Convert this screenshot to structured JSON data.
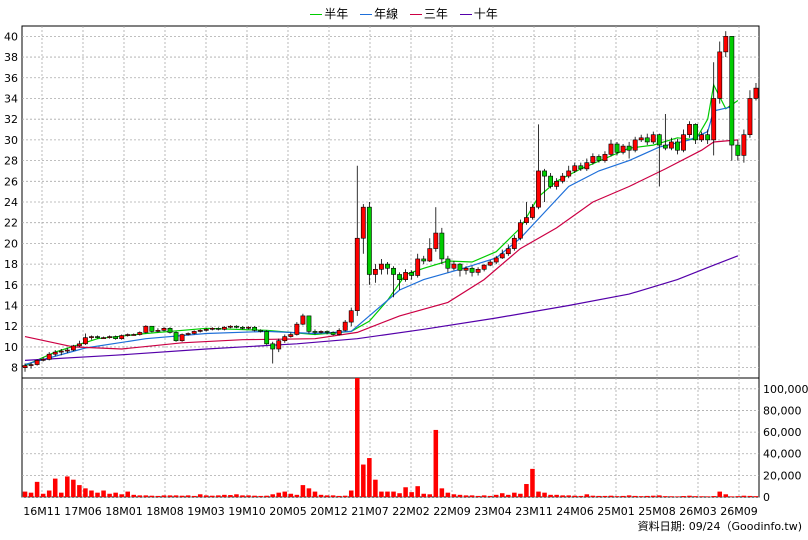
{
  "legend": {
    "items": [
      {
        "label": "半年",
        "color": "#00cc00"
      },
      {
        "label": "年線",
        "color": "#1e6fd9"
      },
      {
        "label": "三年",
        "color": "#cc0044"
      },
      {
        "label": "十年",
        "color": "#5500aa"
      }
    ]
  },
  "credit": "資料日期: 09/24（Goodinfo.tw)",
  "chart_data": {
    "type": "candlestick+volume",
    "x_ticks": [
      "16M11",
      "17M06",
      "18M01",
      "18M08",
      "19M03",
      "19M10",
      "20M05",
      "20M12",
      "21M07",
      "22M02",
      "22M09",
      "23M04",
      "23M11",
      "24M06",
      "25M01",
      "25M08",
      "26M03",
      "26M09"
    ],
    "price_axis": {
      "ylim": [
        7,
        41
      ],
      "ticks": [
        8,
        10,
        12,
        14,
        16,
        18,
        20,
        22,
        24,
        26,
        28,
        30,
        32,
        34,
        36,
        38,
        40
      ],
      "grid": true
    },
    "volume_axis": {
      "ylim": [
        0,
        110000
      ],
      "ticks": [
        "0",
        "20,000",
        "40,000",
        "60,000",
        "80,000",
        "100,000"
      ],
      "tick_values": [
        0,
        20000,
        40000,
        60000,
        80000,
        100000
      ]
    },
    "colors": {
      "up": "#ff0000",
      "down": "#00cc00",
      "volume": "#ff0000",
      "grid": "#aaaaaa"
    },
    "series": [
      {
        "name": "半年",
        "color": "#00cc00",
        "points": [
          [
            0,
            8.2
          ],
          [
            5,
            9.5
          ],
          [
            12,
            10.8
          ],
          [
            20,
            11.3
          ],
          [
            30,
            11.8
          ],
          [
            40,
            11.6
          ],
          [
            48,
            11.2
          ],
          [
            54,
            11.5
          ],
          [
            57,
            12.5
          ],
          [
            60,
            14.5
          ],
          [
            63,
            17.0
          ],
          [
            66,
            17.6
          ],
          [
            70,
            18.3
          ],
          [
            74,
            18.2
          ],
          [
            78,
            19.2
          ],
          [
            82,
            21.5
          ],
          [
            85,
            24.5
          ],
          [
            88,
            26.0
          ],
          [
            92,
            27.2
          ],
          [
            96,
            28.2
          ],
          [
            100,
            29.2
          ],
          [
            104,
            29.5
          ],
          [
            108,
            30.2
          ],
          [
            111,
            30.0
          ],
          [
            113,
            32.0
          ],
          [
            114,
            35.3
          ],
          [
            116,
            33.0
          ],
          [
            118,
            33.8
          ]
        ]
      },
      {
        "name": "年線",
        "color": "#1e6fd9",
        "points": [
          [
            0,
            8.3
          ],
          [
            10,
            9.9
          ],
          [
            20,
            10.8
          ],
          [
            30,
            11.3
          ],
          [
            40,
            11.5
          ],
          [
            48,
            11.3
          ],
          [
            54,
            11.5
          ],
          [
            58,
            13.5
          ],
          [
            62,
            15.5
          ],
          [
            66,
            16.5
          ],
          [
            72,
            17.5
          ],
          [
            78,
            18.6
          ],
          [
            82,
            20.5
          ],
          [
            86,
            23.0
          ],
          [
            90,
            25.5
          ],
          [
            95,
            27.0
          ],
          [
            100,
            28.0
          ],
          [
            105,
            29.3
          ],
          [
            110,
            30.0
          ],
          [
            113,
            30.8
          ],
          [
            114,
            32.8
          ],
          [
            117,
            33.2
          ]
        ]
      },
      {
        "name": "三年",
        "color": "#cc0044",
        "points": [
          [
            0,
            11.0
          ],
          [
            8,
            10.0
          ],
          [
            16,
            9.8
          ],
          [
            26,
            10.4
          ],
          [
            36,
            10.7
          ],
          [
            48,
            10.8
          ],
          [
            55,
            11.4
          ],
          [
            62,
            13.0
          ],
          [
            70,
            14.3
          ],
          [
            76,
            16.5
          ],
          [
            82,
            19.5
          ],
          [
            88,
            21.5
          ],
          [
            94,
            24.0
          ],
          [
            100,
            25.5
          ],
          [
            106,
            27.2
          ],
          [
            112,
            29.0
          ],
          [
            114,
            29.8
          ],
          [
            118,
            30.0
          ]
        ]
      },
      {
        "name": "十年",
        "color": "#5500aa",
        "points": [
          [
            0,
            8.7
          ],
          [
            15,
            9.2
          ],
          [
            30,
            9.8
          ],
          [
            45,
            10.3
          ],
          [
            55,
            10.8
          ],
          [
            66,
            11.7
          ],
          [
            78,
            12.8
          ],
          [
            90,
            14.0
          ],
          [
            100,
            15.1
          ],
          [
            108,
            16.5
          ],
          [
            114,
            17.9
          ],
          [
            118,
            18.8
          ]
        ]
      }
    ],
    "candles": [
      [
        8.0,
        8.2,
        7.6,
        8.4
      ],
      [
        8.2,
        8.3,
        7.9,
        8.5
      ],
      [
        8.3,
        8.7,
        8.2,
        8.8
      ],
      [
        8.7,
        8.8,
        8.6,
        9.0
      ],
      [
        8.8,
        9.3,
        8.7,
        9.5
      ],
      [
        9.3,
        9.5,
        9.1,
        9.7
      ],
      [
        9.5,
        9.6,
        9.2,
        9.8
      ],
      [
        9.6,
        9.7,
        9.4,
        9.9
      ],
      [
        9.7,
        10.1,
        9.6,
        10.2
      ],
      [
        10.1,
        10.3,
        10.0,
        10.6
      ],
      [
        10.3,
        10.9,
        10.2,
        11.3
      ],
      [
        10.9,
        11.0,
        10.7,
        11.1
      ],
      [
        11.0,
        10.9,
        10.8,
        11.1
      ],
      [
        10.9,
        10.9,
        10.8,
        11.0
      ],
      [
        10.9,
        11.0,
        10.8,
        11.1
      ],
      [
        11.0,
        10.8,
        10.7,
        11.1
      ],
      [
        10.8,
        11.1,
        10.7,
        11.2
      ],
      [
        11.1,
        11.2,
        11.0,
        11.3
      ],
      [
        11.2,
        11.2,
        11.1,
        11.3
      ],
      [
        11.2,
        11.4,
        11.1,
        11.5
      ],
      [
        11.4,
        12.0,
        11.3,
        12.1
      ],
      [
        12.0,
        11.5,
        11.4,
        12.0
      ],
      [
        11.5,
        11.6,
        11.4,
        11.8
      ],
      [
        11.6,
        11.8,
        11.5,
        11.9
      ],
      [
        11.8,
        11.4,
        11.3,
        11.9
      ],
      [
        11.4,
        10.6,
        10.5,
        11.5
      ],
      [
        10.6,
        11.2,
        10.5,
        11.3
      ],
      [
        11.2,
        11.3,
        11.1,
        11.4
      ],
      [
        11.3,
        11.5,
        11.2,
        11.6
      ],
      [
        11.5,
        11.6,
        11.4,
        11.7
      ],
      [
        11.6,
        11.7,
        11.5,
        11.8
      ],
      [
        11.7,
        11.8,
        11.6,
        11.9
      ],
      [
        11.8,
        11.7,
        11.6,
        11.9
      ],
      [
        11.7,
        11.9,
        11.6,
        12.0
      ],
      [
        11.9,
        12.0,
        11.8,
        12.1
      ],
      [
        12.0,
        11.9,
        11.8,
        12.1
      ],
      [
        11.9,
        11.8,
        11.7,
        12.0
      ],
      [
        11.8,
        11.9,
        11.7,
        12.0
      ],
      [
        11.9,
        11.6,
        11.5,
        12.0
      ],
      [
        11.6,
        11.5,
        11.4,
        11.7
      ],
      [
        11.5,
        10.3,
        10.2,
        11.6
      ],
      [
        10.3,
        9.8,
        8.4,
        10.5
      ],
      [
        9.8,
        10.6,
        9.5,
        10.8
      ],
      [
        10.6,
        11.0,
        10.4,
        11.2
      ],
      [
        11.0,
        11.2,
        10.9,
        11.4
      ],
      [
        11.2,
        12.2,
        11.1,
        12.4
      ],
      [
        12.2,
        13.0,
        12.1,
        13.2
      ],
      [
        13.0,
        11.5,
        11.3,
        13.0
      ],
      [
        11.5,
        11.4,
        11.2,
        11.7
      ],
      [
        11.4,
        11.5,
        11.3,
        11.6
      ],
      [
        11.5,
        11.4,
        11.2,
        11.6
      ],
      [
        11.4,
        11.2,
        11.1,
        11.5
      ],
      [
        11.2,
        11.6,
        11.1,
        11.8
      ],
      [
        11.6,
        12.4,
        11.5,
        12.6
      ],
      [
        12.4,
        13.5,
        12.0,
        13.8
      ],
      [
        13.5,
        20.5,
        13.0,
        27.5
      ],
      [
        20.5,
        23.5,
        19.0,
        23.8
      ],
      [
        23.5,
        17.0,
        16.0,
        24.0
      ],
      [
        17.0,
        17.5,
        16.2,
        18.0
      ],
      [
        17.5,
        18.0,
        17.0,
        18.5
      ],
      [
        18.0,
        17.6,
        17.0,
        18.2
      ],
      [
        17.6,
        17.0,
        14.8,
        17.8
      ],
      [
        17.0,
        16.5,
        15.5,
        17.2
      ],
      [
        16.5,
        17.2,
        16.3,
        17.5
      ],
      [
        17.2,
        16.9,
        16.5,
        17.4
      ],
      [
        16.9,
        18.5,
        16.7,
        19.0
      ],
      [
        18.5,
        18.3,
        18.0,
        18.8
      ],
      [
        18.3,
        19.5,
        18.2,
        20.5
      ],
      [
        19.5,
        21.0,
        19.2,
        23.5
      ],
      [
        21.0,
        18.5,
        18.0,
        21.5
      ],
      [
        18.5,
        17.6,
        17.2,
        18.8
      ],
      [
        17.6,
        18.0,
        17.4,
        18.3
      ],
      [
        18.0,
        17.4,
        16.8,
        18.1
      ],
      [
        17.4,
        17.6,
        17.0,
        17.8
      ],
      [
        17.6,
        17.2,
        16.8,
        17.8
      ],
      [
        17.2,
        17.5,
        16.9,
        17.7
      ],
      [
        17.5,
        17.9,
        17.3,
        18.0
      ],
      [
        17.9,
        18.2,
        17.8,
        18.4
      ],
      [
        18.2,
        18.6,
        18.0,
        18.8
      ],
      [
        18.6,
        19.0,
        18.5,
        19.4
      ],
      [
        19.0,
        19.5,
        18.8,
        19.9
      ],
      [
        19.5,
        20.5,
        19.3,
        20.8
      ],
      [
        20.5,
        22.0,
        20.3,
        22.3
      ],
      [
        22.0,
        22.5,
        21.8,
        24.0
      ],
      [
        22.5,
        23.5,
        22.3,
        23.8
      ],
      [
        23.5,
        27.0,
        23.3,
        31.5
      ],
      [
        27.0,
        26.5,
        24.0,
        27.2
      ],
      [
        26.5,
        25.5,
        25.3,
        26.8
      ],
      [
        25.5,
        26.0,
        25.2,
        26.3
      ],
      [
        26.0,
        26.5,
        25.8,
        26.8
      ],
      [
        26.5,
        27.0,
        26.3,
        27.5
      ],
      [
        27.0,
        27.5,
        26.8,
        27.8
      ],
      [
        27.5,
        27.2,
        27.0,
        27.8
      ],
      [
        27.2,
        27.8,
        27.0,
        28.2
      ],
      [
        27.8,
        28.4,
        27.6,
        28.7
      ],
      [
        28.4,
        28.0,
        27.8,
        28.6
      ],
      [
        28.0,
        28.6,
        27.8,
        28.9
      ],
      [
        28.6,
        29.6,
        28.4,
        30.0
      ],
      [
        29.6,
        28.8,
        28.5,
        29.8
      ],
      [
        28.8,
        29.4,
        28.6,
        29.6
      ],
      [
        29.4,
        29.0,
        28.2,
        29.8
      ],
      [
        29.0,
        30.0,
        28.8,
        30.3
      ],
      [
        30.0,
        30.2,
        29.8,
        30.5
      ],
      [
        30.2,
        29.8,
        29.5,
        30.6
      ],
      [
        29.8,
        30.5,
        29.6,
        30.8
      ],
      [
        30.5,
        29.5,
        25.5,
        30.6
      ],
      [
        29.5,
        29.2,
        29.0,
        32.5
      ],
      [
        29.2,
        29.8,
        29.0,
        30.2
      ],
      [
        29.8,
        29.0,
        28.6,
        30.1
      ],
      [
        29.0,
        30.5,
        28.8,
        31.0
      ],
      [
        30.5,
        31.5,
        30.2,
        31.8
      ],
      [
        31.5,
        30.0,
        29.6,
        31.6
      ],
      [
        30.0,
        30.5,
        29.8,
        30.8
      ],
      [
        30.5,
        30.0,
        29.6,
        31.0
      ],
      [
        30.0,
        34.0,
        28.5,
        37.5
      ],
      [
        34.0,
        38.5,
        33.5,
        39.5
      ],
      [
        38.5,
        40.0,
        38.0,
        40.5
      ],
      [
        40.0,
        29.5,
        28.0,
        40.0
      ],
      [
        29.5,
        28.5,
        28.0,
        30.0
      ],
      [
        28.5,
        30.5,
        27.8,
        31.0
      ],
      [
        30.5,
        34.0,
        30.2,
        34.8
      ],
      [
        34.0,
        35.0,
        33.8,
        35.5
      ]
    ],
    "volume": [
      5000,
      4000,
      14000,
      3000,
      6000,
      17000,
      4000,
      19000,
      16000,
      11000,
      8000,
      6000,
      4000,
      6000,
      3000,
      4000,
      2500,
      5000,
      2000,
      1500,
      1500,
      1200,
      1000,
      1500,
      1500,
      1500,
      1200,
      1500,
      1000,
      2500,
      1500,
      1200,
      1500,
      2000,
      1800,
      2500,
      1500,
      1500,
      1200,
      1000,
      1200,
      2500,
      4000,
      5000,
      3000,
      2000,
      11000,
      8000,
      5000,
      2000,
      1500,
      1500,
      1000,
      1200,
      6000,
      110000,
      30000,
      36000,
      16000,
      5000,
      5000,
      5000,
      3500,
      9000,
      4500,
      10000,
      3000,
      2500,
      62000,
      8000,
      4000,
      2500,
      2000,
      1500,
      1500,
      1000,
      1500,
      1000,
      2000,
      3500,
      2000,
      4000,
      3000,
      12000,
      26000,
      5000,
      4000,
      2000,
      2000,
      1500,
      1500,
      1200,
      1000,
      2500,
      1200,
      1000,
      1000,
      1200,
      800,
      1000,
      1500,
      1000,
      800,
      1000,
      1200,
      1500,
      800,
      700,
      600,
      900,
      1200,
      800,
      700,
      600,
      900,
      5000,
      2500,
      600,
      800,
      1200,
      1000,
      800
    ]
  }
}
